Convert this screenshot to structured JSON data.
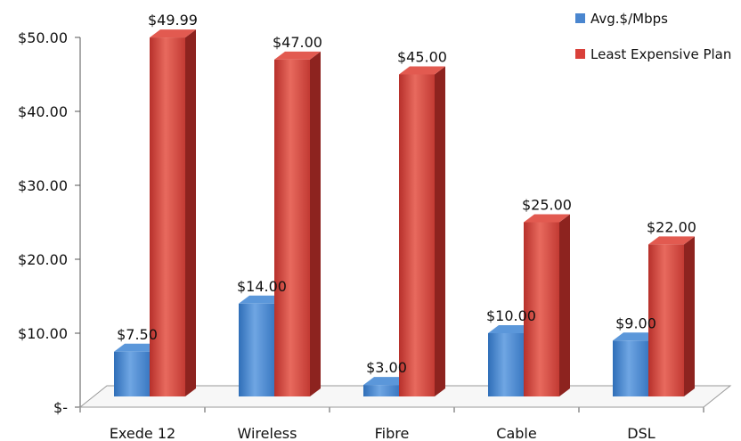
{
  "chart_data": {
    "type": "bar",
    "categories": [
      "Exede 12",
      "Wireless",
      "Fibre",
      "Cable",
      "DSL"
    ],
    "series": [
      {
        "name": "Avg.$/Mbps",
        "values": [
          7.5,
          14.0,
          3.0,
          10.0,
          9.0
        ],
        "labels": [
          "$7.50",
          "$14.00",
          "$3.00",
          "$10.00",
          "$9.00"
        ],
        "color": "#4a86cf"
      },
      {
        "name": "Least Expensive Plan",
        "values": [
          49.99,
          47.0,
          45.0,
          25.0,
          22.0
        ],
        "labels": [
          "$49.99",
          "$47.00",
          "$45.00",
          "$25.00",
          "$22.00"
        ],
        "color": "#d9403a"
      }
    ],
    "yticks": [
      {
        "value": 0,
        "label": "$-"
      },
      {
        "value": 10,
        "label": "$10.00"
      },
      {
        "value": 20,
        "label": "$20.00"
      },
      {
        "value": 30,
        "label": "$30.00"
      },
      {
        "value": 40,
        "label": "$40.00"
      },
      {
        "value": 50,
        "label": "$50.00"
      }
    ],
    "ylim": [
      0,
      50
    ],
    "legend_position": "top-right",
    "grid": false,
    "style": "3d"
  }
}
